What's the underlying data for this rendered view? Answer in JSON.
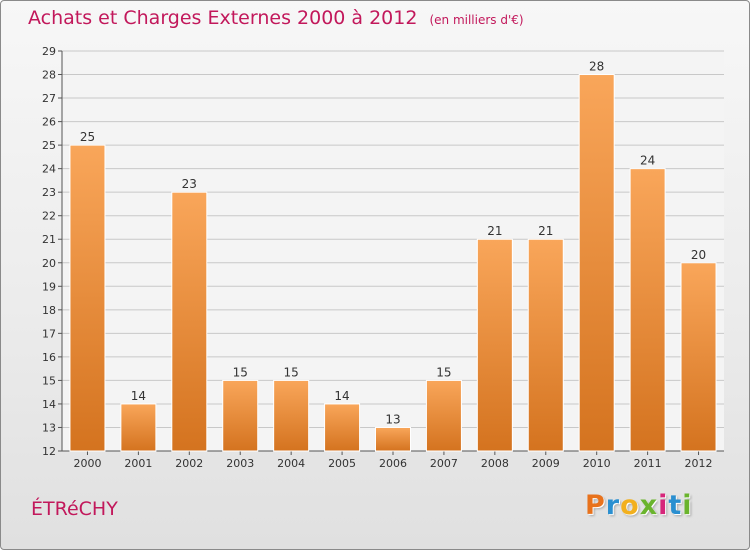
{
  "header": {
    "title": "Achats et Charges Externes 2000 à 2012",
    "unit": "(en milliers d'€)"
  },
  "commune": "ÉTRéCHY",
  "brand": {
    "letters": [
      "P",
      "r",
      "o",
      "x",
      "i",
      "t",
      "i"
    ],
    "colors": [
      "#e8721c",
      "#2a8fd0",
      "#f2b01e",
      "#6ab42d",
      "#d6257a",
      "#2a8fd0",
      "#6ab42d"
    ]
  },
  "colors": {
    "title": "#c2185b",
    "bar_light": "#f9a65a",
    "bar_dark": "#d4731f",
    "grid": "#c8c8c8"
  },
  "chart_data": {
    "type": "bar",
    "title": "Achats et Charges Externes 2000 à 2012",
    "xlabel": "",
    "ylabel": "",
    "categories": [
      "2000",
      "2001",
      "2002",
      "2003",
      "2004",
      "2005",
      "2006",
      "2007",
      "2008",
      "2009",
      "2010",
      "2011",
      "2012"
    ],
    "values": [
      25,
      14,
      23,
      15,
      15,
      14,
      13,
      15,
      21,
      21,
      28,
      24,
      20
    ],
    "ylim": [
      12,
      29
    ],
    "yticks": [
      12,
      13,
      14,
      15,
      16,
      17,
      18,
      19,
      20,
      21,
      22,
      23,
      24,
      25,
      26,
      27,
      28,
      29
    ],
    "grid": true,
    "data_labels": true
  }
}
